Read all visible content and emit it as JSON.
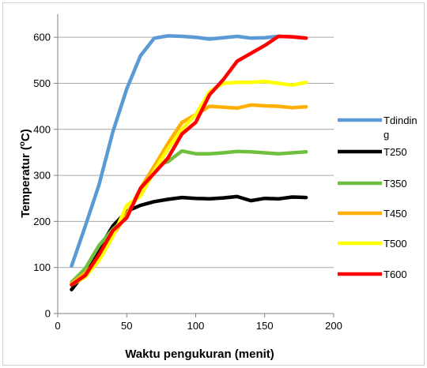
{
  "chart_data": {
    "type": "line",
    "title": "",
    "xlabel": "Waktu pengukuran (menit)",
    "ylabel_main": "Temperatur (",
    "ylabel_sup": "o",
    "ylabel_end": "C)",
    "xlim": [
      0,
      200
    ],
    "ylim": [
      0,
      650
    ],
    "xticks": [
      0,
      50,
      100,
      150,
      200
    ],
    "yticks": [
      0,
      100,
      200,
      300,
      400,
      500,
      600
    ],
    "grid": "horizontal",
    "legend_position": "right",
    "series": [
      {
        "name_lines": [
          "Tdindin",
          "g"
        ],
        "color": "#5B9BD5",
        "x": [
          10,
          20,
          30,
          40,
          50,
          60,
          70,
          80,
          90,
          100,
          110,
          120,
          130,
          140,
          150,
          160,
          170,
          180
        ],
        "y": [
          103,
          190,
          280,
          395,
          488,
          560,
          598,
          603,
          602,
          600,
          596,
          599,
          602,
          598,
          599,
          602,
          601,
          598
        ]
      },
      {
        "name_lines": [
          "T250"
        ],
        "color": "#000000",
        "x": [
          10,
          20,
          30,
          40,
          50,
          60,
          70,
          80,
          90,
          100,
          110,
          120,
          130,
          140,
          150,
          160,
          170,
          180
        ],
        "y": [
          52,
          90,
          140,
          190,
          222,
          235,
          243,
          248,
          252,
          250,
          249,
          251,
          254,
          245,
          250,
          249,
          253,
          252
        ]
      },
      {
        "name_lines": [
          "T350"
        ],
        "color": "#70C040",
        "x": [
          10,
          20,
          30,
          40,
          50,
          60,
          70,
          80,
          90,
          100,
          110,
          120,
          130,
          140,
          150,
          160,
          170,
          180
        ],
        "y": [
          68,
          98,
          148,
          183,
          210,
          270,
          320,
          330,
          353,
          347,
          347,
          349,
          352,
          351,
          349,
          347,
          349,
          351
        ]
      },
      {
        "name_lines": [
          "T450"
        ],
        "color": "#FFB000",
        "x": [
          10,
          20,
          30,
          40,
          50,
          60,
          70,
          80,
          90,
          100,
          110,
          120,
          130,
          140,
          150,
          160,
          170,
          180
        ],
        "y": [
          65,
          88,
          120,
          170,
          215,
          272,
          320,
          370,
          415,
          432,
          450,
          448,
          446,
          453,
          451,
          450,
          447,
          449
        ]
      },
      {
        "name_lines": [
          "T500"
        ],
        "color": "#FFFF00",
        "x": [
          10,
          20,
          30,
          40,
          50,
          60,
          70,
          80,
          90,
          100,
          110,
          120,
          130,
          140,
          150,
          160,
          170,
          180
        ],
        "y": [
          62,
          80,
          115,
          168,
          235,
          255,
          310,
          358,
          400,
          432,
          482,
          500,
          502,
          502,
          504,
          500,
          496,
          502
        ]
      },
      {
        "name_lines": [
          "T600"
        ],
        "color": "#FF0000",
        "x": [
          10,
          20,
          30,
          40,
          50,
          60,
          70,
          80,
          90,
          100,
          110,
          120,
          130,
          140,
          150,
          160,
          170,
          180
        ],
        "y": [
          62,
          83,
          128,
          180,
          208,
          272,
          305,
          338,
          390,
          415,
          475,
          508,
          548,
          565,
          582,
          602,
          601,
          598
        ]
      }
    ]
  }
}
